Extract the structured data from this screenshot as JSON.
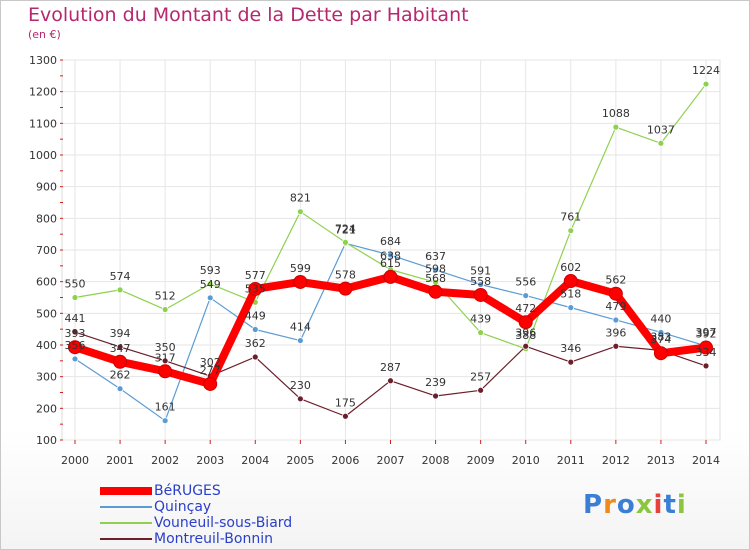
{
  "chart_data": {
    "type": "line",
    "title": "Evolution du Montant de la Dette par Habitant",
    "unit_label": "(en €)",
    "categories": [
      "2000",
      "2001",
      "2002",
      "2003",
      "2004",
      "2005",
      "2006",
      "2007",
      "2008",
      "2009",
      "2010",
      "2011",
      "2012",
      "2013",
      "2014"
    ],
    "ylim": [
      100,
      1300
    ],
    "yticks": [
      100,
      200,
      300,
      400,
      500,
      600,
      700,
      800,
      900,
      1000,
      1100,
      1200,
      1300
    ],
    "series": [
      {
        "name": "BéRUGES",
        "color": "#ff0000",
        "values": [
          393,
          347,
          317,
          277,
          577,
          599,
          578,
          615,
          568,
          558,
          472,
          602,
          562,
          374,
          392
        ]
      },
      {
        "name": "Quinçay",
        "color": "#5b9bd5",
        "values": [
          356,
          262,
          161,
          549,
          449,
          414,
          721,
          684,
          637,
          591,
          556,
          518,
          479,
          440,
          397
        ]
      },
      {
        "name": "Vouneuil-sous-Biard",
        "color": "#8fd14f",
        "values": [
          550,
          574,
          512,
          593,
          535,
          821,
          724,
          638,
          598,
          439,
          388,
          761,
          1088,
          1037,
          1224
        ]
      },
      {
        "name": "Montreuil-Bonnin",
        "color": "#6b1f2a",
        "values": [
          441,
          394,
          350,
          302,
          362,
          230,
          175,
          287,
          239,
          257,
          396,
          346,
          396,
          383,
          334
        ]
      }
    ],
    "legend": [
      "BéRUGES",
      "Quinçay",
      "Vouneuil-sous-Biard",
      "Montreuil-Bonnin"
    ],
    "grid": true
  },
  "logo": {
    "text": "Proxiti",
    "colors": [
      "#3a7fd5",
      "#f08a1c",
      "#3a7fd5",
      "#8cc63e",
      "#e8413c",
      "#3a7fd5",
      "#8cc63e"
    ]
  }
}
